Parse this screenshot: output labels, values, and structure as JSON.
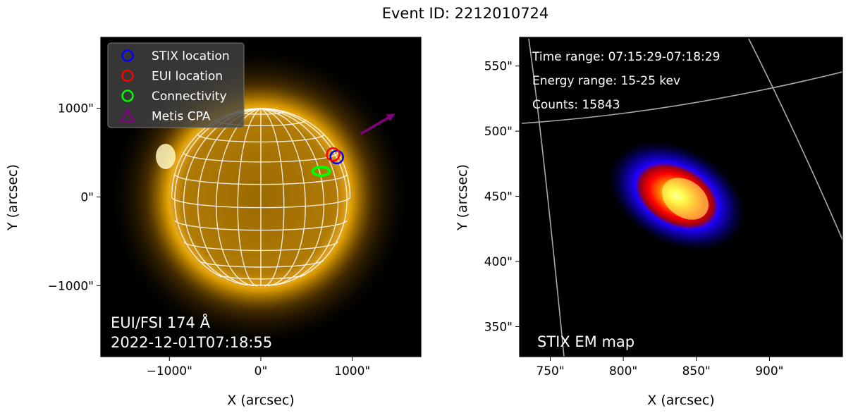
{
  "title": "Event ID: 2212010724",
  "chart_data": [
    {
      "type": "heatmap",
      "name": "EUI/FSI image",
      "xlabel": "X (arcsec)",
      "ylabel": "Y (arcsec)",
      "xticks": [
        {
          "v": -1000,
          "label": "−1000\""
        },
        {
          "v": 0,
          "label": "0\""
        },
        {
          "v": 1000,
          "label": "1000\""
        }
      ],
      "yticks": [
        {
          "v": 1000,
          "label": "1000\""
        },
        {
          "v": 0,
          "label": "0\""
        },
        {
          "v": -1000,
          "label": "−1000\""
        }
      ],
      "xlim": [
        -1750,
        1750
      ],
      "ylim": [
        -1800,
        1800
      ],
      "annotation_lines": [
        "EUI/FSI 174 Å",
        "2022-12-01T07:18:55"
      ],
      "legend": {
        "placement": "top-left",
        "entries": [
          {
            "label": "STIX location",
            "marker": "circle",
            "color": "#0000ff"
          },
          {
            "label": "EUI location",
            "marker": "circle",
            "color": "#ff0000"
          },
          {
            "label": "Connectivity",
            "marker": "circle",
            "color": "#00ff00"
          },
          {
            "label": "Metis CPA",
            "marker": "triangle",
            "color": "#800080"
          }
        ]
      },
      "markers": [
        {
          "name": "stix-location",
          "x": 830,
          "y": 450,
          "color": "#0000ff"
        },
        {
          "name": "eui-location",
          "x": 790,
          "y": 480,
          "color": "#ff0000"
        },
        {
          "name": "connectivity",
          "x": 660,
          "y": 290,
          "color": "#00ff00"
        }
      ],
      "arrow": {
        "from": [
          1090,
          710
        ],
        "to": [
          1470,
          940
        ],
        "color": "#800080"
      },
      "solar_radius_arcsec": 975
    },
    {
      "type": "heatmap",
      "name": "STIX EM map",
      "xlabel": "X (arcsec)",
      "ylabel": "Y (arcsec)",
      "xticks": [
        {
          "v": 750,
          "label": "750\""
        },
        {
          "v": 800,
          "label": "800\""
        },
        {
          "v": 850,
          "label": "850\""
        },
        {
          "v": 900,
          "label": "900\""
        }
      ],
      "yticks": [
        {
          "v": 550,
          "label": "550\""
        },
        {
          "v": 500,
          "label": "500\""
        },
        {
          "v": 450,
          "label": "450\""
        },
        {
          "v": 400,
          "label": "400\""
        },
        {
          "v": 350,
          "label": "350\""
        }
      ],
      "xlim": [
        729,
        950
      ],
      "ylim": [
        327,
        572
      ],
      "info": [
        "Time range: 07:15:29-07:18:29",
        "Energy range: 15-25 kev",
        "Counts: 15843"
      ],
      "annotation": "STIX EM map",
      "source_peak": {
        "x": 832,
        "y": 450
      }
    }
  ]
}
